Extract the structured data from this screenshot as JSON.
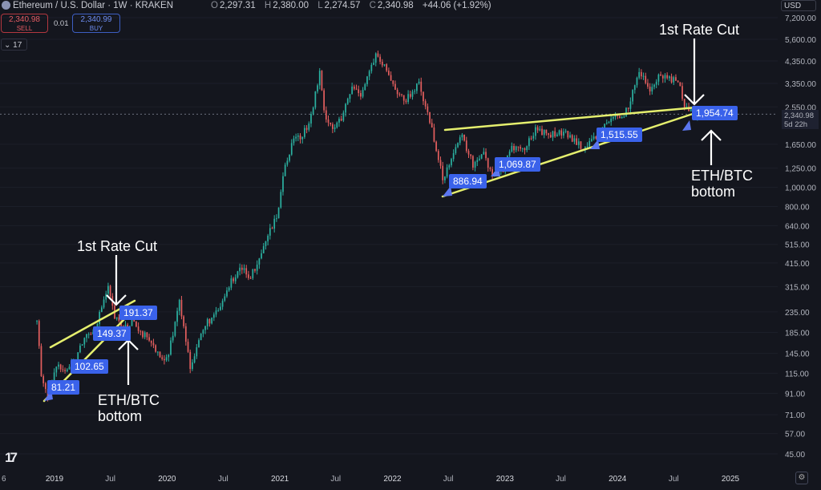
{
  "header": {
    "symbol_title": "Ethereum / U.S. Dollar · 1W · KRAKEN",
    "ohlc": [
      {
        "key": "O",
        "value": "2,297.31"
      },
      {
        "key": "H",
        "value": "2,380.00"
      },
      {
        "key": "L",
        "value": "2,274.57"
      },
      {
        "key": "C",
        "value": "2,340.98"
      }
    ],
    "change": "+44.06 (+1.92%)"
  },
  "trade": {
    "sell_price": "2,340.98",
    "sell_label": "SELL",
    "buy_price": "2,340.99",
    "buy_label": "BUY",
    "spread": "0.01"
  },
  "indicators_count": "17",
  "currency": "USD",
  "last_price": {
    "value": "2,340.98",
    "countdown": "5d 22h"
  },
  "axis": {
    "y_ticks": [
      "7,200.00",
      "5,600.00",
      "4,350.00",
      "3,350.00",
      "2,550.00",
      "1,650.00",
      "1,250.00",
      "1,000.00",
      "800.00",
      "640.00",
      "515.00",
      "415.00",
      "315.00",
      "235.00",
      "185.00",
      "145.00",
      "115.00",
      "91.00",
      "71.00",
      "57.00",
      "45.00"
    ],
    "x_ticks": [
      "6",
      "2019",
      "Jul",
      "2020",
      "Jul",
      "2021",
      "Jul",
      "2022",
      "Jul",
      "2023",
      "Jul",
      "2024",
      "Jul",
      "2025"
    ]
  },
  "annotations": {
    "rate_cut_2019": "1st Rate Cut",
    "rate_cut_2024": "1st Rate Cut",
    "ethbtc_2019_line1": "ETH/BTC",
    "ethbtc_2019_line2": "bottom",
    "ethbtc_2024_line1": "ETH/BTC",
    "ethbtc_2024_line2": "bottom"
  },
  "price_labels": [
    "81.21",
    "102.65",
    "149.37",
    "191.37",
    "886.94",
    "1,069.87",
    "1,515.55",
    "1,954.74"
  ],
  "colors": {
    "background": "#14161e",
    "up": "#2bb0a0",
    "down": "#e35e5e",
    "trendline": "#e5ef6e",
    "label_bg": "#3a62ea"
  },
  "icons": {
    "logo": "tradingview-logo",
    "settings": "gear-icon",
    "symbol": "ethereum-icon",
    "indicators": "chevron-down-icon"
  },
  "chart_data": {
    "type": "candlestick",
    "title": "Ethereum / U.S. Dollar · 1W · KRAKEN",
    "scale": "log",
    "ylim": [
      45,
      7200
    ],
    "x_range": [
      "2018-11",
      "2025-02"
    ],
    "last_close": 2340.98,
    "trendline_touch_points": [
      81.21,
      102.65,
      149.37,
      191.37,
      886.94,
      1069.87,
      1515.55,
      1954.74
    ],
    "weekly_closes": [
      {
        "date": "2018-11-05",
        "close": 210
      },
      {
        "date": "2018-11-19",
        "close": 115
      },
      {
        "date": "2018-12-10",
        "close": 84
      },
      {
        "date": "2019-01-07",
        "close": 125
      },
      {
        "date": "2019-02-11",
        "close": 122
      },
      {
        "date": "2019-03-11",
        "close": 136
      },
      {
        "date": "2019-04-08",
        "close": 175
      },
      {
        "date": "2019-05-13",
        "close": 195
      },
      {
        "date": "2019-06-10",
        "close": 270
      },
      {
        "date": "2019-06-24",
        "close": 310
      },
      {
        "date": "2019-07-15",
        "close": 220
      },
      {
        "date": "2019-08-12",
        "close": 195
      },
      {
        "date": "2019-09-09",
        "close": 210
      },
      {
        "date": "2019-10-07",
        "close": 180
      },
      {
        "date": "2019-11-04",
        "close": 175
      },
      {
        "date": "2019-12-09",
        "close": 135
      },
      {
        "date": "2020-01-06",
        "close": 145
      },
      {
        "date": "2020-02-10",
        "close": 265
      },
      {
        "date": "2020-03-16",
        "close": 125
      },
      {
        "date": "2020-04-13",
        "close": 170
      },
      {
        "date": "2020-05-11",
        "close": 210
      },
      {
        "date": "2020-06-15",
        "close": 235
      },
      {
        "date": "2020-07-20",
        "close": 320
      },
      {
        "date": "2020-08-24",
        "close": 400
      },
      {
        "date": "2020-09-21",
        "close": 350
      },
      {
        "date": "2020-10-19",
        "close": 390
      },
      {
        "date": "2020-11-23",
        "close": 570
      },
      {
        "date": "2020-12-21",
        "close": 700
      },
      {
        "date": "2021-01-18",
        "close": 1300
      },
      {
        "date": "2021-02-15",
        "close": 1800
      },
      {
        "date": "2021-03-15",
        "close": 1800
      },
      {
        "date": "2021-04-12",
        "close": 2300
      },
      {
        "date": "2021-05-10",
        "close": 3800
      },
      {
        "date": "2021-05-24",
        "close": 2400
      },
      {
        "date": "2021-06-21",
        "close": 2000
      },
      {
        "date": "2021-07-19",
        "close": 2200
      },
      {
        "date": "2021-08-23",
        "close": 3200
      },
      {
        "date": "2021-09-20",
        "close": 3000
      },
      {
        "date": "2021-10-25",
        "close": 4100
      },
      {
        "date": "2021-11-08",
        "close": 4600
      },
      {
        "date": "2021-12-13",
        "close": 3900
      },
      {
        "date": "2022-01-10",
        "close": 3200
      },
      {
        "date": "2022-02-07",
        "close": 2700
      },
      {
        "date": "2022-03-28",
        "close": 3300
      },
      {
        "date": "2022-05-09",
        "close": 2000
      },
      {
        "date": "2022-06-13",
        "close": 1100
      },
      {
        "date": "2022-07-18",
        "close": 1550
      },
      {
        "date": "2022-08-15",
        "close": 1800
      },
      {
        "date": "2022-09-19",
        "close": 1300
      },
      {
        "date": "2022-10-24",
        "close": 1550
      },
      {
        "date": "2022-11-14",
        "close": 1200
      },
      {
        "date": "2022-12-26",
        "close": 1220
      },
      {
        "date": "2023-01-23",
        "close": 1620
      },
      {
        "date": "2023-03-06",
        "close": 1550
      },
      {
        "date": "2023-04-10",
        "close": 2000
      },
      {
        "date": "2023-05-22",
        "close": 1850
      },
      {
        "date": "2023-06-19",
        "close": 1880
      },
      {
        "date": "2023-07-24",
        "close": 1850
      },
      {
        "date": "2023-08-21",
        "close": 1650
      },
      {
        "date": "2023-09-25",
        "close": 1600
      },
      {
        "date": "2023-10-23",
        "close": 1800
      },
      {
        "date": "2023-11-20",
        "close": 2050
      },
      {
        "date": "2023-12-25",
        "close": 2300
      },
      {
        "date": "2024-01-22",
        "close": 2250
      },
      {
        "date": "2024-02-19",
        "close": 3000
      },
      {
        "date": "2024-03-11",
        "close": 3900
      },
      {
        "date": "2024-04-15",
        "close": 3100
      },
      {
        "date": "2024-05-20",
        "close": 3750
      },
      {
        "date": "2024-06-17",
        "close": 3550
      },
      {
        "date": "2024-07-22",
        "close": 3300
      },
      {
        "date": "2024-08-05",
        "close": 2550
      },
      {
        "date": "2024-08-26",
        "close": 2450
      },
      {
        "date": "2024-09-09",
        "close": 2300
      },
      {
        "date": "2024-09-23",
        "close": 2340.98
      }
    ]
  }
}
